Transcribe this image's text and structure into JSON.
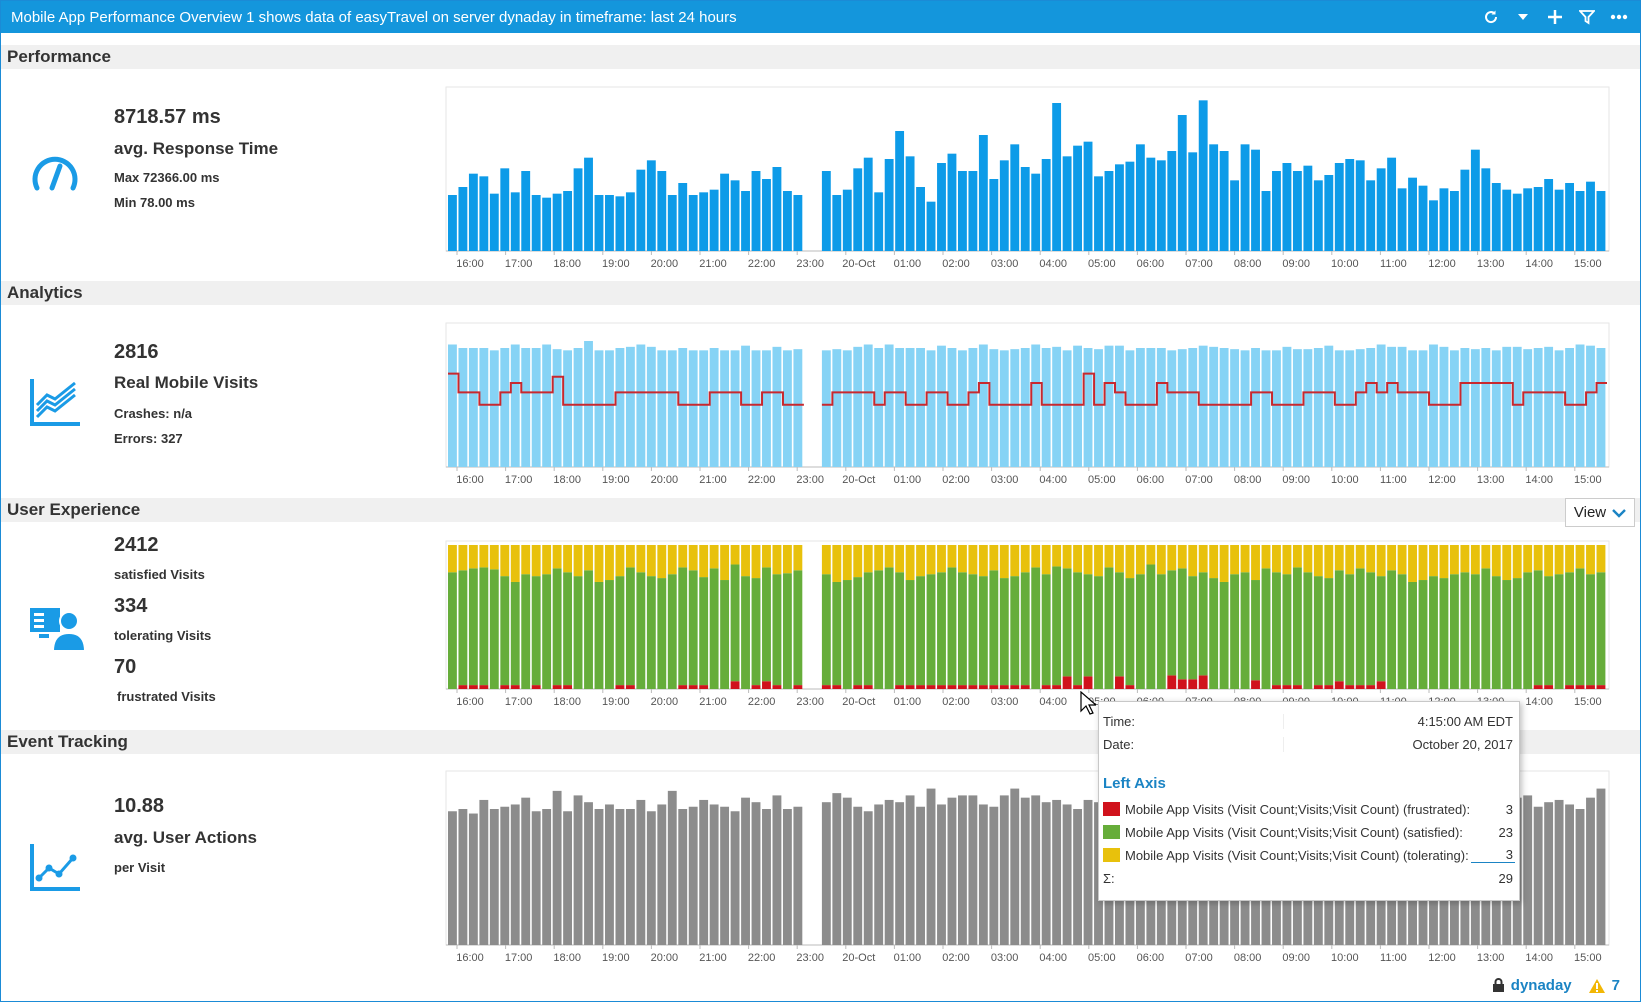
{
  "window": {
    "title": "Mobile App Performance Overview 1 shows data of easyTravel on server dynaday in timeframe: last 24 hours",
    "icons": [
      "refresh-icon",
      "chevron-down-icon",
      "plus-icon",
      "filter-icon",
      "more-icon"
    ]
  },
  "x_ticks": [
    "16:00",
    "17:00",
    "18:00",
    "19:00",
    "20:00",
    "21:00",
    "22:00",
    "23:00",
    "20-Oct",
    "01:00",
    "02:00",
    "03:00",
    "04:00",
    "05:00",
    "06:00",
    "07:00",
    "08:00",
    "09:00",
    "10:00",
    "11:00",
    "12:00",
    "13:00",
    "14:00",
    "15:00"
  ],
  "sections": {
    "performance": {
      "header": "Performance",
      "value": "8718.57 ms",
      "label": "avg. Response Time",
      "max": "Max 72366.00 ms",
      "min": "Min 78.00 ms",
      "icon": "speedometer-icon"
    },
    "analytics": {
      "header": "Analytics",
      "value": "2816",
      "label": "Real Mobile Visits",
      "crashes": "Crashes: n/a",
      "errors": "Errors: 327",
      "icon": "line-chart-icon"
    },
    "user_experience": {
      "header": "User Experience",
      "satisfied_value": "2412",
      "satisfied_label": "satisfied Visits",
      "tolerating_value": "334",
      "tolerating_label": "tolerating Visits",
      "frustrated_value": "70",
      "frustrated_label": "frustrated Visits",
      "view_label": "View",
      "icon": "user-screen-icon"
    },
    "event_tracking": {
      "header": "Event Tracking",
      "value": "10.88",
      "label": "avg. User Actions",
      "sub": "per Visit",
      "icon": "trend-icon"
    }
  },
  "colors": {
    "titlebar": "#1496dc",
    "performance_bar": "#0d9be8",
    "analytics_bar": "#86d3f5",
    "analytics_line": "#c8282e",
    "satisfied": "#66ad3a",
    "tolerating": "#e8c10c",
    "frustrated": "#d0121c",
    "event_bar": "#8c8c8c"
  },
  "tooltip": {
    "time_label": "Time:",
    "time_value": "4:15:00 AM EDT",
    "date_label": "Date:",
    "date_value": "October 20, 2017",
    "axis_title": "Left Axis",
    "series": [
      {
        "name": "Mobile App Visits (Visit Count;Visits;Visit Count) (frustrated):",
        "value": "3",
        "color": "#d0121c"
      },
      {
        "name": "Mobile App Visits (Visit Count;Visits;Visit Count) (satisfied):",
        "value": "23",
        "color": "#66ad3a"
      },
      {
        "name": "Mobile App Visits (Visit Count;Visits;Visit Count) (tolerating):",
        "value": "3",
        "color": "#e8c10c"
      }
    ],
    "sum_label": "Σ:",
    "sum_value": "29"
  },
  "footer": {
    "server": "dynaday",
    "warning_count": "7"
  },
  "chart_data": [
    {
      "type": "bar",
      "name": "performance",
      "gap_after": 34,
      "values": [
        42,
        48,
        58,
        56,
        43,
        62,
        44,
        60,
        42,
        40,
        43,
        45,
        62,
        70,
        42,
        42,
        41,
        44,
        61,
        68,
        60,
        42,
        51,
        42,
        44,
        46,
        58,
        53,
        45,
        60,
        54,
        63,
        45,
        42,
        60,
        42,
        46,
        62,
        70,
        44,
        69,
        90,
        71,
        48,
        37,
        66,
        73,
        60,
        60,
        87,
        54,
        68,
        80,
        63,
        58,
        69,
        111,
        71,
        79,
        82,
        56,
        60,
        65,
        67,
        80,
        70,
        68,
        75,
        102,
        74,
        113,
        80,
        75,
        53,
        80,
        76,
        45,
        60,
        66,
        60,
        64,
        53,
        57,
        66,
        69,
        68,
        53,
        62,
        70,
        47,
        55,
        49,
        38,
        47,
        45,
        61,
        76,
        62,
        51,
        46,
        43,
        47,
        48,
        54,
        46,
        51,
        45,
        52,
        45
      ]
    },
    {
      "type": "bar+line",
      "name": "analytics",
      "gap_after": 34,
      "bars": [
        105,
        102,
        102,
        102,
        100,
        102,
        105,
        102,
        102,
        105,
        101,
        100,
        102,
        108,
        100,
        100,
        102,
        103,
        105,
        103,
        100,
        100,
        102,
        100,
        100,
        102,
        100,
        100,
        104,
        100,
        100,
        103,
        100,
        101,
        100,
        101,
        100,
        103,
        105,
        102,
        105,
        102,
        102,
        102,
        100,
        104,
        102,
        100,
        102,
        105,
        101,
        100,
        101,
        102,
        105,
        102,
        103,
        100,
        104,
        102,
        101,
        104,
        104,
        100,
        102,
        102,
        102,
        100,
        101,
        102,
        104,
        103,
        102,
        101,
        100,
        102,
        100,
        100,
        103,
        101,
        101,
        102,
        104,
        100,
        100,
        101,
        102,
        105,
        103,
        103,
        100,
        100,
        105,
        103,
        100,
        102,
        101,
        102,
        100,
        103,
        103,
        101,
        102,
        103,
        100,
        102,
        105,
        104,
        102
      ],
      "line": [
        60,
        48,
        48,
        40,
        40,
        48,
        54,
        48,
        48,
        48,
        58,
        40,
        40,
        40,
        40,
        40,
        48,
        48,
        48,
        48,
        48,
        48,
        40,
        40,
        40,
        48,
        48,
        48,
        40,
        40,
        48,
        48,
        40,
        40,
        40,
        48,
        48,
        48,
        48,
        40,
        48,
        48,
        40,
        40,
        48,
        48,
        40,
        40,
        48,
        54,
        40,
        40,
        40,
        40,
        54,
        40,
        40,
        40,
        40,
        60,
        40,
        54,
        48,
        40,
        40,
        40,
        54,
        48,
        48,
        48,
        40,
        40,
        40,
        40,
        40,
        48,
        48,
        40,
        40,
        40,
        48,
        48,
        48,
        40,
        40,
        48,
        54,
        48,
        54,
        48,
        48,
        48,
        40,
        40,
        40,
        54,
        54,
        54,
        54,
        54,
        40,
        48,
        48,
        48,
        48,
        40,
        40,
        48,
        54
      ]
    },
    {
      "type": "stacked-bar",
      "name": "user_experience",
      "gap_after": 34,
      "series": [
        {
          "name": "satisfied",
          "values": [
            120,
            122,
            124,
            125,
            123,
            116,
            110,
            118,
            116,
            118,
            124,
            120,
            116,
            122,
            110,
            112,
            116,
            125,
            120,
            116,
            114,
            118,
            125,
            122,
            115,
            124,
            112,
            128,
            116,
            114,
            125,
            118,
            119,
            122,
            118,
            110,
            112,
            115,
            120,
            122,
            125,
            120,
            112,
            116,
            118,
            120,
            125,
            120,
            118,
            116,
            122,
            114,
            116,
            120,
            125,
            118,
            126,
            124,
            120,
            118,
            116,
            125,
            120,
            114,
            118,
            128,
            118,
            122,
            124,
            116,
            120,
            114,
            110,
            118,
            120,
            112,
            124,
            120,
            118,
            125,
            120,
            116,
            114,
            122,
            118,
            124,
            120,
            116,
            122,
            118,
            110,
            112,
            116,
            114,
            118,
            120,
            118,
            124,
            116,
            112,
            114,
            120,
            122,
            116,
            118,
            120,
            124,
            118,
            120
          ]
        },
        {
          "name": "tolerating",
          "values": [
            28,
            26,
            24,
            23,
            25,
            32,
            38,
            30,
            32,
            30,
            24,
            28,
            32,
            26,
            38,
            36,
            32,
            23,
            28,
            32,
            34,
            30,
            23,
            26,
            33,
            24,
            36,
            20,
            32,
            34,
            23,
            30,
            29,
            26,
            30,
            38,
            36,
            33,
            28,
            26,
            23,
            28,
            36,
            32,
            30,
            28,
            23,
            28,
            30,
            32,
            26,
            34,
            32,
            28,
            23,
            30,
            22,
            24,
            28,
            30,
            32,
            23,
            28,
            34,
            30,
            20,
            30,
            26,
            24,
            32,
            28,
            34,
            38,
            30,
            28,
            36,
            24,
            28,
            30,
            23,
            28,
            32,
            34,
            26,
            30,
            24,
            28,
            32,
            26,
            30,
            38,
            36,
            32,
            34,
            30,
            28,
            30,
            24,
            32,
            36,
            34,
            28,
            26,
            32,
            30,
            28,
            24,
            30,
            28
          ]
        },
        {
          "name": "frustrated",
          "values": [
            0,
            4,
            4,
            4,
            0,
            4,
            4,
            0,
            4,
            0,
            4,
            4,
            0,
            0,
            0,
            0,
            4,
            4,
            0,
            0,
            0,
            0,
            4,
            4,
            4,
            0,
            0,
            8,
            0,
            4,
            8,
            4,
            0,
            4,
            4,
            4,
            0,
            4,
            4,
            0,
            0,
            4,
            4,
            4,
            4,
            4,
            4,
            4,
            4,
            4,
            4,
            4,
            4,
            4,
            0,
            4,
            4,
            13,
            4,
            13,
            0,
            0,
            13,
            4,
            0,
            0,
            0,
            14,
            10,
            10,
            14,
            0,
            0,
            0,
            0,
            9,
            0,
            4,
            4,
            4,
            0,
            4,
            4,
            8,
            4,
            4,
            4,
            8,
            0,
            0,
            0,
            0,
            0,
            0,
            0,
            0,
            0,
            0,
            0,
            0,
            0,
            0,
            4,
            4,
            0,
            4,
            4,
            4,
            4
          ]
        }
      ]
    },
    {
      "type": "bar",
      "name": "event_tracking",
      "gap_after": 34,
      "values": [
        118,
        120,
        116,
        128,
        120,
        122,
        124,
        130,
        118,
        120,
        136,
        118,
        132,
        126,
        120,
        124,
        120,
        120,
        128,
        118,
        124,
        136,
        120,
        122,
        128,
        124,
        122,
        118,
        130,
        126,
        120,
        132,
        120,
        122,
        126,
        134,
        130,
        122,
        118,
        124,
        128,
        126,
        132,
        122,
        138,
        124,
        130,
        132,
        132,
        124,
        122,
        132,
        138,
        130,
        132,
        126,
        128,
        124,
        120,
        128,
        126,
        124,
        138,
        124,
        120,
        132,
        130,
        126,
        122,
        124,
        128,
        132,
        126,
        124,
        120,
        128,
        124,
        120,
        130,
        128,
        126,
        124,
        118,
        124,
        126,
        128,
        132,
        120,
        124,
        126,
        122,
        128,
        136,
        124,
        130,
        120,
        124,
        130,
        118,
        124,
        130,
        132,
        122,
        126,
        128,
        124,
        120,
        130,
        138
      ]
    }
  ]
}
